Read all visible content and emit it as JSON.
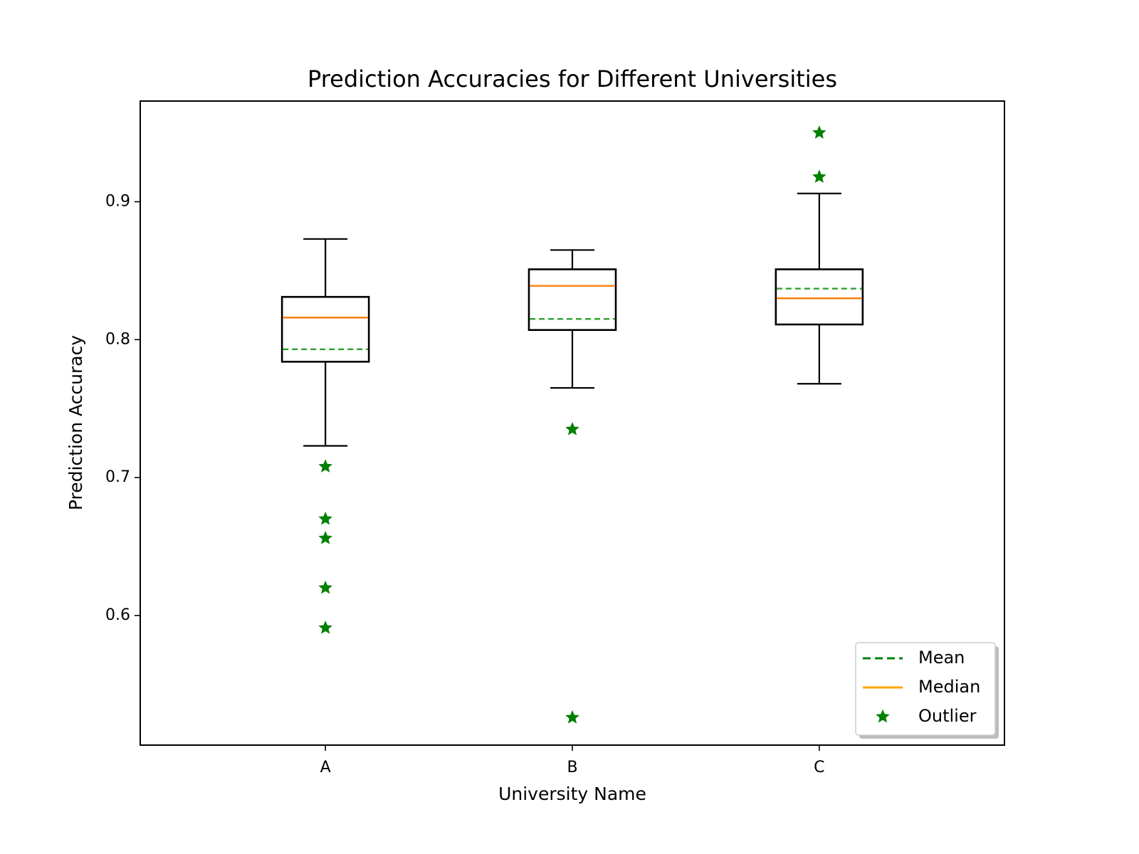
{
  "chart_data": {
    "type": "box",
    "title": "Prediction Accuracies for Different Universities",
    "xlabel": "University Name",
    "ylabel": "Prediction Accuracy",
    "categories": [
      "A",
      "B",
      "C"
    ],
    "ylim": [
      0.506,
      0.973
    ],
    "yticks": [
      0.6,
      0.7,
      0.8,
      0.9
    ],
    "ytick_labels": [
      "0.6",
      "0.7",
      "0.8",
      "0.9"
    ],
    "grid": false,
    "legend_position": "lower-right",
    "series": [
      {
        "category": "A",
        "whisker_low": 0.723,
        "q1": 0.784,
        "median": 0.816,
        "q3": 0.831,
        "whisker_high": 0.873,
        "mean": 0.793,
        "outliers": [
          0.708,
          0.67,
          0.656,
          0.62,
          0.591
        ]
      },
      {
        "category": "B",
        "whisker_low": 0.765,
        "q1": 0.807,
        "median": 0.839,
        "q3": 0.851,
        "whisker_high": 0.865,
        "mean": 0.815,
        "outliers": [
          0.735,
          0.526
        ]
      },
      {
        "category": "C",
        "whisker_low": 0.768,
        "q1": 0.811,
        "median": 0.83,
        "q3": 0.851,
        "whisker_high": 0.906,
        "mean": 0.837,
        "outliers": [
          0.95,
          0.918
        ]
      }
    ],
    "legend": [
      {
        "label": "Mean",
        "style": "dashed-line",
        "color": "#008000"
      },
      {
        "label": "Median",
        "style": "solid-line",
        "color": "#ffa500"
      },
      {
        "label": "Outlier",
        "style": "star-marker",
        "color": "#008000"
      }
    ],
    "colors": {
      "box": "#000000",
      "median_line": "#ff7f0e",
      "mean_line": "#2ca02c",
      "outlier": "#008000"
    }
  }
}
